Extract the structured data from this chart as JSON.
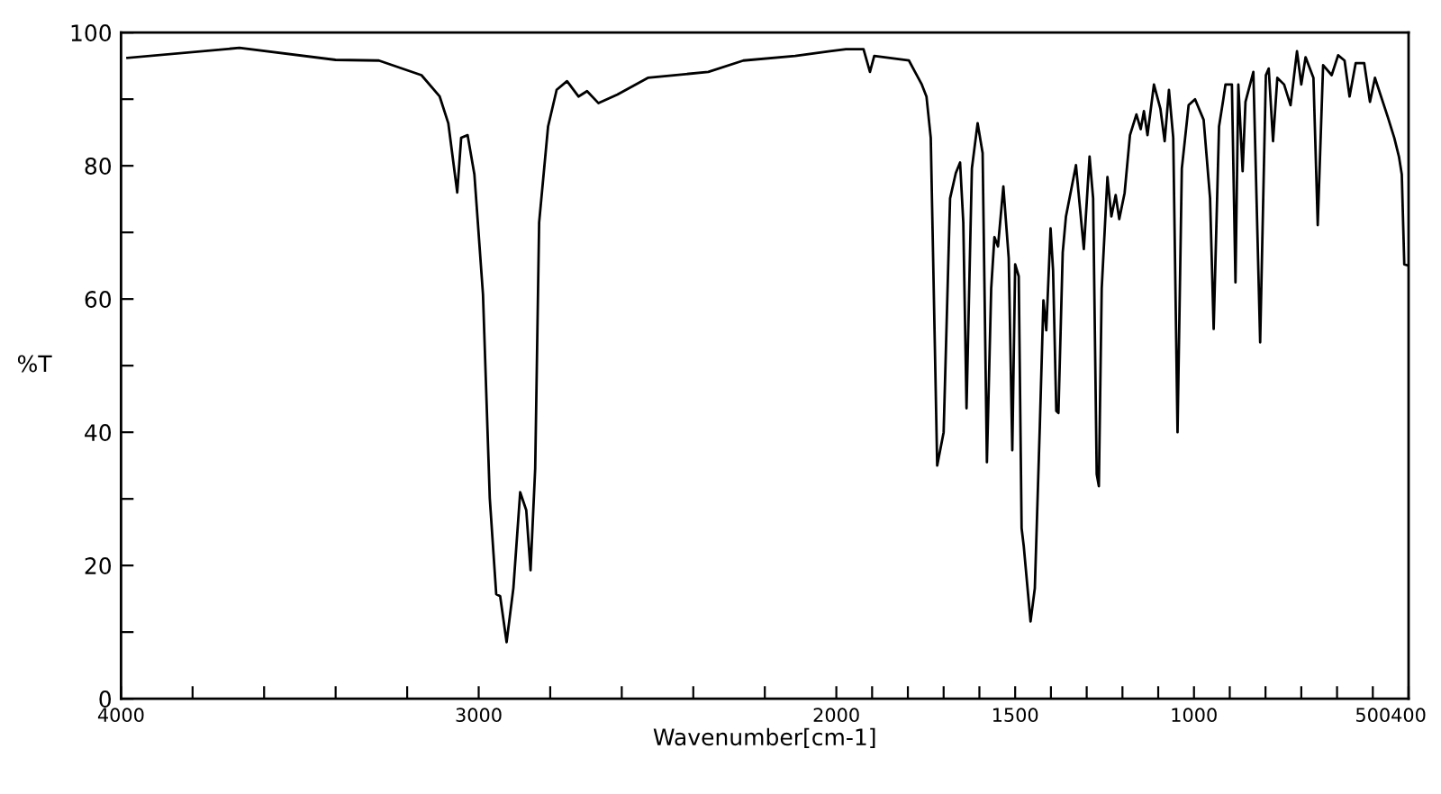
{
  "chart_data": {
    "type": "line",
    "xlabel": "Wavenumber[cm-1]",
    "ylabel": "%T",
    "xlim": [
      4000,
      400
    ],
    "ylim": [
      0,
      100
    ],
    "xticks": [
      4000,
      {
        "value": 3800,
        "label": null
      },
      {
        "value": 3600,
        "label": null
      },
      {
        "value": 3400,
        "label": null
      },
      {
        "value": 3200,
        "label": null
      },
      3000,
      {
        "value": 2800,
        "label": null
      },
      {
        "value": 2600,
        "label": null
      },
      {
        "value": 2400,
        "label": null
      },
      {
        "value": 2200,
        "label": null
      },
      2000,
      {
        "value": 1900,
        "label": null
      },
      {
        "value": 1800,
        "label": null
      },
      {
        "value": 1700,
        "label": null
      },
      {
        "value": 1600,
        "label": null
      },
      1500,
      {
        "value": 1400,
        "label": null
      },
      {
        "value": 1300,
        "label": null
      },
      {
        "value": 1200,
        "label": null
      },
      {
        "value": 1100,
        "label": null
      },
      1000,
      {
        "value": 900,
        "label": null
      },
      {
        "value": 800,
        "label": null
      },
      {
        "value": 700,
        "label": null
      },
      {
        "value": 600,
        "label": null
      },
      500,
      400
    ],
    "yticks": [
      0,
      {
        "value": 10,
        "label": null
      },
      20,
      {
        "value": 30,
        "label": null
      },
      40,
      {
        "value": 50,
        "label": null
      },
      60,
      {
        "value": 70,
        "label": null
      },
      80,
      {
        "value": 90,
        "label": null
      },
      100
    ],
    "grid": false,
    "legend": false,
    "marker": "none",
    "line_style": "solid",
    "series": [
      {
        "color": "#000000",
        "x": [
          3982,
          3669,
          3400,
          3279,
          3160,
          3109,
          3085,
          3060,
          3049,
          3031,
          3012,
          2988,
          2969,
          2951,
          2940,
          2922,
          2903,
          2884,
          2867,
          2855,
          2842,
          2831,
          2806,
          2782,
          2753,
          2721,
          2697,
          2665,
          2612,
          2527,
          2358,
          2260,
          2115,
          2018,
          1973,
          1924,
          1906,
          1894,
          1797,
          1761,
          1748,
          1736,
          1718,
          1700,
          1682,
          1666,
          1654,
          1645,
          1636,
          1621,
          1605,
          1591,
          1579,
          1567,
          1558,
          1548,
          1533,
          1518,
          1508,
          1500,
          1490,
          1482,
          1476,
          1457,
          1445,
          1431,
          1421,
          1413,
          1401,
          1394,
          1385,
          1379,
          1367,
          1358,
          1330,
          1308,
          1292,
          1282,
          1272,
          1266,
          1258,
          1242,
          1231,
          1219,
          1209,
          1194,
          1179,
          1161,
          1149,
          1140,
          1130,
          1112,
          1094,
          1082,
          1070,
          1058,
          1046,
          1034,
          1015,
          997,
          973,
          955,
          945,
          930,
          918,
          912,
          894,
          884,
          876,
          864,
          856,
          834,
          815,
          799,
          791,
          779,
          767,
          748,
          730,
          712,
          700,
          688,
          666,
          654,
          639,
          615,
          597,
          579,
          565,
          548,
          524,
          508,
          494,
          458,
          440,
          427,
          419,
          412,
          400
        ],
        "values": [
          96.2,
          97.7,
          95.9,
          95.8,
          93.6,
          90.4,
          86.4,
          76.0,
          84.2,
          84.6,
          78.7,
          60.7,
          30.1,
          15.7,
          15.4,
          8.5,
          16.6,
          31.0,
          28.3,
          19.3,
          34.6,
          71.5,
          85.9,
          91.4,
          92.7,
          90.4,
          91.2,
          89.4,
          90.7,
          93.2,
          94.1,
          95.8,
          96.5,
          97.2,
          97.5,
          97.5,
          94.1,
          96.5,
          95.8,
          92.2,
          90.4,
          84.2,
          35.0,
          40.0,
          75.1,
          78.9,
          80.5,
          71.5,
          43.6,
          79.6,
          86.4,
          81.9,
          35.5,
          61.6,
          69.3,
          67.9,
          76.9,
          66.1,
          37.3,
          65.2,
          63.4,
          25.6,
          22.9,
          11.6,
          16.6,
          41.0,
          59.8,
          55.3,
          70.6,
          64.3,
          43.2,
          42.9,
          67.0,
          72.4,
          80.1,
          67.5,
          81.4,
          75.1,
          33.7,
          31.9,
          61.6,
          78.3,
          72.4,
          75.6,
          72.0,
          75.9,
          84.6,
          87.7,
          85.5,
          88.2,
          84.6,
          92.2,
          88.6,
          83.7,
          91.4,
          84.2,
          40.0,
          79.6,
          89.1,
          90.0,
          86.9,
          75.1,
          55.5,
          85.9,
          90.0,
          92.2,
          92.2,
          62.5,
          92.2,
          79.2,
          89.6,
          94.1,
          53.5,
          93.6,
          94.6,
          83.7,
          93.2,
          92.2,
          89.1,
          97.2,
          92.2,
          96.3,
          93.2,
          71.1,
          95.1,
          93.6,
          96.6,
          95.8,
          90.4,
          95.4,
          95.4,
          89.6,
          93.2,
          87.3,
          84.2,
          81.4,
          78.7,
          65.2,
          65.0
        ]
      }
    ]
  }
}
